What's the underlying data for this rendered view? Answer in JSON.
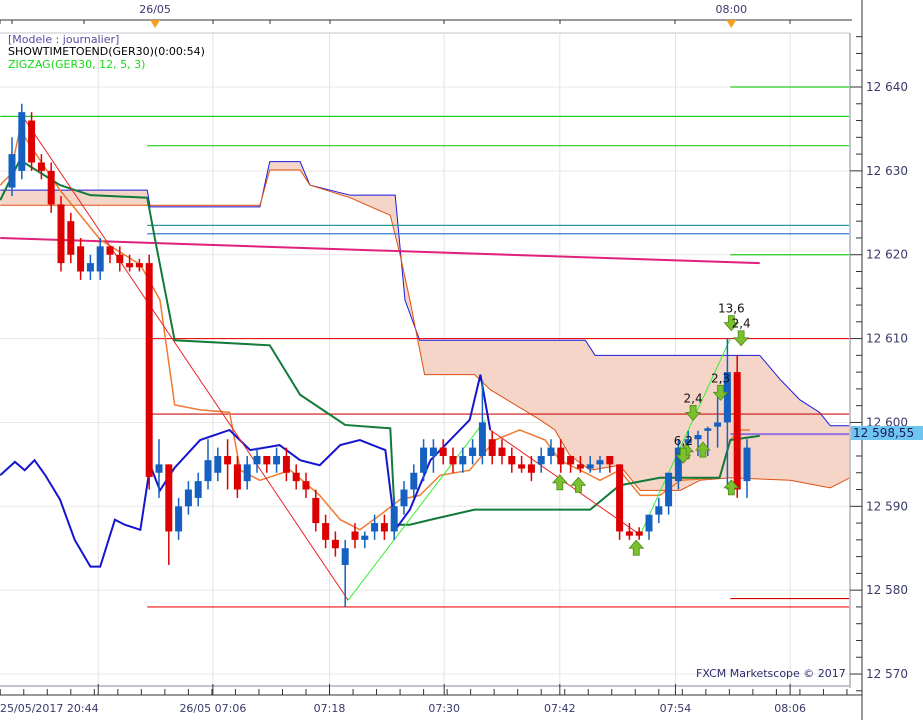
{
  "header": {
    "model": "[Modele : journalier]",
    "timer": "SHOWTIMETOEND(GER30)(0:00:54)",
    "zigzag": "ZIGZAG(GER30, 12, 5, 3)"
  },
  "watermark": "FXCM Marketscope © 2017",
  "last_price": "12 598,55",
  "colors": {
    "up": "#1560c0",
    "down": "#dd0000",
    "cloud": "#f5d5c8",
    "last": "#6ec6f0"
  },
  "chart_data": {
    "type": "candlestick",
    "ylim": [
      12568,
      12646
    ],
    "yticks": [
      {
        "v": 12640,
        "label": "12 640"
      },
      {
        "v": 12630,
        "label": "12 630"
      },
      {
        "v": 12620,
        "label": "12 620"
      },
      {
        "v": 12610,
        "label": "12 610"
      },
      {
        "v": 12600,
        "label": "12 600"
      },
      {
        "v": 12590,
        "label": "12 590"
      },
      {
        "v": 12580,
        "label": "12 580"
      },
      {
        "v": 12570,
        "label": "12 570"
      }
    ],
    "xticks": [
      {
        "i": -1.2,
        "label": "25/05/2017 20:44",
        "grid": false
      },
      {
        "i": 8.8,
        "label": "",
        "grid": true
      },
      {
        "i": 20.5,
        "label": "26/05 07:06",
        "grid": true
      },
      {
        "i": 32.4,
        "label": "07:18",
        "grid": true
      },
      {
        "i": 44.1,
        "label": "07:30",
        "grid": true
      },
      {
        "i": 55.9,
        "label": "07:42",
        "grid": true
      },
      {
        "i": 67.7,
        "label": "07:54",
        "grid": true
      },
      {
        "i": 79.4,
        "label": "08:06",
        "grid": true
      }
    ],
    "top_markers": [
      {
        "i": 14.6,
        "label": "26/05"
      },
      {
        "i": 73.4,
        "label": "08:00"
      }
    ],
    "candles": [
      [
        12628,
        12634,
        12627,
        12632
      ],
      [
        12630,
        12638,
        12629,
        12637
      ],
      [
        12636,
        12637,
        12630,
        12631
      ],
      [
        12631,
        12632,
        12629,
        12630
      ],
      [
        12630,
        12631,
        12625,
        12626
      ],
      [
        12626,
        12627,
        12618,
        12619
      ],
      [
        12624,
        12625,
        12619,
        12620
      ],
      [
        12621,
        12622,
        12617,
        12618
      ],
      [
        12618,
        12620,
        12617,
        12619
      ],
      [
        12618,
        12622,
        12617,
        12621
      ],
      [
        12621,
        12621,
        12619,
        12620
      ],
      [
        12620,
        12621,
        12618,
        12619
      ],
      [
        12619,
        12620,
        12618,
        12618.5
      ],
      [
        12619,
        12619.5,
        12618,
        12618.5
      ],
      [
        12619,
        12620,
        12592,
        12593.5
      ],
      [
        12594,
        12598,
        12591,
        12595
      ],
      [
        12595,
        12595,
        12583,
        12587
      ],
      [
        12587,
        12591,
        12586,
        12590
      ],
      [
        12590,
        12593,
        12589,
        12592
      ],
      [
        12591,
        12594,
        12590,
        12593
      ],
      [
        12593,
        12598,
        12592,
        12595.5
      ],
      [
        12594,
        12597,
        12593,
        12596
      ],
      [
        12596,
        12598,
        12592,
        12595
      ],
      [
        12595,
        12596,
        12591,
        12592
      ],
      [
        12593,
        12596,
        12592,
        12595
      ],
      [
        12595,
        12597,
        12594,
        12596
      ],
      [
        12596,
        12596,
        12594,
        12595
      ],
      [
        12595,
        12597,
        12594,
        12596
      ],
      [
        12596,
        12597,
        12593,
        12594
      ],
      [
        12594,
        12595,
        12592,
        12593
      ],
      [
        12593,
        12594,
        12591,
        12592
      ],
      [
        12591,
        12592,
        12587,
        12588
      ],
      [
        12588,
        12589,
        12585,
        12586
      ],
      [
        12586,
        12587,
        12584,
        12585
      ],
      [
        12583,
        12586,
        12578,
        12585
      ],
      [
        12587,
        12588,
        12585,
        12586
      ],
      [
        12586,
        12587,
        12585,
        12586.5
      ],
      [
        12587,
        12589,
        12586,
        12588
      ],
      [
        12588,
        12589,
        12586,
        12587
      ],
      [
        12587,
        12591,
        12586,
        12590
      ],
      [
        12590,
        12593,
        12589,
        12592
      ],
      [
        12592,
        12595,
        12591,
        12594
      ],
      [
        12594,
        12598,
        12593,
        12597
      ],
      [
        12596,
        12598,
        12594,
        12597
      ],
      [
        12597,
        12598,
        12595,
        12596
      ],
      [
        12596,
        12597,
        12594,
        12595
      ],
      [
        12595,
        12597,
        12594,
        12596
      ],
      [
        12596,
        12598,
        12595,
        12597
      ],
      [
        12596,
        12605,
        12595,
        12600
      ],
      [
        12598,
        12599,
        12595,
        12596
      ],
      [
        12597,
        12598,
        12595,
        12596
      ],
      [
        12596,
        12597,
        12594,
        12595
      ],
      [
        12595,
        12596,
        12594,
        12594.5
      ],
      [
        12595,
        12596,
        12593,
        12594
      ],
      [
        12595,
        12597,
        12594,
        12596
      ],
      [
        12596,
        12598,
        12595,
        12597
      ],
      [
        12597,
        12598,
        12594,
        12595
      ],
      [
        12596,
        12596,
        12594,
        12595
      ],
      [
        12595,
        12596,
        12594,
        12594.5
      ],
      [
        12594.5,
        12596,
        12594,
        12595
      ],
      [
        12595,
        12596,
        12594,
        12595.5
      ],
      [
        12596,
        12596,
        12594,
        12595
      ],
      [
        12595,
        12595,
        12586,
        12587
      ],
      [
        12587,
        12588,
        12586,
        12586.5
      ],
      [
        12587,
        12587.5,
        12586,
        12586.5
      ],
      [
        12587,
        12589,
        12586,
        12589
      ],
      [
        12589,
        12591,
        12588,
        12590
      ],
      [
        12590,
        12594,
        12589,
        12594
      ],
      [
        12593,
        12598,
        12592,
        12597
      ],
      [
        12597.5,
        12599,
        12597,
        12598
      ],
      [
        12598,
        12599,
        12596,
        12598.5
      ],
      [
        12599,
        12599.5,
        12596,
        12599.3
      ],
      [
        12599.5,
        12603,
        12597,
        12600
      ],
      [
        12600,
        12610,
        12592,
        12606
      ],
      [
        12606,
        12608,
        12591,
        12592
      ],
      [
        12593,
        12598,
        12591,
        12597
      ]
    ],
    "cloud_top": [
      [
        -1.2,
        12627.7
      ],
      [
        13.8,
        12627.7
      ],
      [
        14.1,
        12625.7
      ],
      [
        25.3,
        12625.7
      ],
      [
        26.3,
        12631.1
      ],
      [
        29.4,
        12631.1
      ],
      [
        30.4,
        12628.3
      ],
      [
        34.5,
        12627.1
      ],
      [
        39.1,
        12627.1
      ],
      [
        40.1,
        12614.6
      ],
      [
        41.6,
        12609.8
      ],
      [
        58.5,
        12609.8
      ],
      [
        59.5,
        12608
      ],
      [
        76.3,
        12608
      ],
      [
        78.4,
        12605.1
      ],
      [
        80.4,
        12602.7
      ],
      [
        82.4,
        12601.2
      ],
      [
        83.5,
        12599.6
      ],
      [
        85.5,
        12599.6
      ]
    ],
    "cloud_bottom": [
      [
        -1.2,
        12625.9
      ],
      [
        25.3,
        12625.9
      ],
      [
        26.3,
        12630.1
      ],
      [
        29.4,
        12630.1
      ],
      [
        30.4,
        12628.3
      ],
      [
        34.5,
        12626.8
      ],
      [
        38.6,
        12624.7
      ],
      [
        39.6,
        12620
      ],
      [
        40.6,
        12614.6
      ],
      [
        42.1,
        12605.7
      ],
      [
        47.2,
        12605.7
      ],
      [
        48.8,
        12603.9
      ],
      [
        53.9,
        12600.3
      ],
      [
        55.4,
        12599.1
      ],
      [
        56.9,
        12596.1
      ],
      [
        59,
        12594.3
      ],
      [
        62,
        12594.9
      ],
      [
        64.1,
        12591.9
      ],
      [
        68.2,
        12591.9
      ],
      [
        70.2,
        12593.1
      ],
      [
        73.3,
        12593.4
      ],
      [
        79.4,
        12593.1
      ],
      [
        83.5,
        12592.2
      ],
      [
        85.5,
        12593.4
      ]
    ],
    "tenkan_blue": [
      [
        -1.2,
        12593.7
      ],
      [
        0.3,
        12595.3
      ],
      [
        1.3,
        12594.3
      ],
      [
        2.3,
        12595.5
      ],
      [
        3.4,
        12593.7
      ],
      [
        4.9,
        12590.8
      ],
      [
        6.4,
        12586
      ],
      [
        8,
        12582.8
      ],
      [
        9,
        12582.8
      ],
      [
        10.5,
        12588.4
      ],
      [
        11.5,
        12587.8
      ],
      [
        13.1,
        12587.2
      ],
      [
        14.1,
        12594.9
      ],
      [
        15.1,
        12591.9
      ],
      [
        16.6,
        12594.6
      ],
      [
        19.2,
        12597.9
      ],
      [
        22.2,
        12599.1
      ],
      [
        24.3,
        12596.7
      ],
      [
        27.3,
        12597.3
      ],
      [
        29.4,
        12595.5
      ],
      [
        31.4,
        12594.9
      ],
      [
        33.5,
        12597.3
      ],
      [
        35.5,
        12597.9
      ],
      [
        38.1,
        12596.7
      ],
      [
        39.1,
        12587.2
      ],
      [
        40.6,
        12589.6
      ],
      [
        42.7,
        12595.5
      ],
      [
        46.7,
        12600.3
      ],
      [
        47.8,
        12605.7
      ],
      [
        48.8,
        12599.1
      ]
    ],
    "kijun_green": [
      [
        -1.2,
        12626.5
      ],
      [
        0.8,
        12631.3
      ],
      [
        4.9,
        12628.3
      ],
      [
        8,
        12627.1
      ],
      [
        13.8,
        12626.8
      ],
      [
        14.6,
        12621.8
      ],
      [
        16.6,
        12609.8
      ],
      [
        26.3,
        12609.2
      ],
      [
        29.4,
        12603.3
      ],
      [
        34,
        12599.7
      ],
      [
        38.6,
        12599.3
      ],
      [
        39.1,
        12587.8
      ],
      [
        40.6,
        12587.8
      ],
      [
        42.7,
        12588.4
      ],
      [
        47.2,
        12589.6
      ],
      [
        59,
        12589.6
      ],
      [
        62,
        12592.5
      ],
      [
        66.1,
        12593.4
      ],
      [
        72.2,
        12593.4
      ],
      [
        73.3,
        12597.9
      ],
      [
        76.3,
        12598.4
      ]
    ],
    "chikou_orange": [
      [
        -1.2,
        12628.3
      ],
      [
        -0.2,
        12629.5
      ],
      [
        0.8,
        12634.9
      ],
      [
        4.9,
        12627.7
      ],
      [
        9,
        12621.8
      ],
      [
        13.1,
        12618.8
      ],
      [
        15.1,
        12614.6
      ],
      [
        16.6,
        12602.1
      ],
      [
        19.2,
        12601.5
      ],
      [
        22.2,
        12601.2
      ],
      [
        23.3,
        12594.3
      ],
      [
        25.3,
        12593.1
      ],
      [
        28.4,
        12594.3
      ],
      [
        31.4,
        12591.3
      ],
      [
        33.5,
        12588.4
      ],
      [
        35.5,
        12587.2
      ],
      [
        37.6,
        12589
      ],
      [
        39.6,
        12590.8
      ],
      [
        41.6,
        12591.3
      ],
      [
        43.7,
        12593.7
      ],
      [
        46.7,
        12594.3
      ],
      [
        49.3,
        12597.9
      ],
      [
        51.8,
        12599.1
      ],
      [
        54.4,
        12597.9
      ],
      [
        55.9,
        12595.5
      ],
      [
        58,
        12594.3
      ],
      [
        60,
        12593.1
      ],
      [
        62,
        12594.3
      ],
      [
        64.1,
        12591.3
      ],
      [
        66.1,
        12591.3
      ],
      [
        68.2,
        12593.1
      ],
      [
        72.2,
        12593.4
      ],
      [
        73.3,
        12597.9
      ],
      [
        74.3,
        12599.1
      ],
      [
        75.3,
        12599.1
      ]
    ],
    "zigzag_down": [
      [
        [
          0.8,
          12637
        ],
        [
          34.3,
          12578.8
        ]
      ],
      [
        [
          48.8,
          12599.1
        ],
        [
          64.1,
          12586.6
        ]
      ]
    ],
    "zigzag_up": [
      [
        [
          34.3,
          12578.8
        ],
        [
          48.3,
          12600.3
        ]
      ],
      [
        [
          64.1,
          12586.6
        ],
        [
          73.3,
          12610
        ]
      ]
    ],
    "levels": [
      {
        "v": 12640,
        "from": 73.3,
        "to": 85.5,
        "color": "#22cc22"
      },
      {
        "v": 12636.5,
        "from": -1.2,
        "to": 85.5,
        "color": "#22cc22"
      },
      {
        "v": 12633,
        "from": 13.8,
        "to": 85.5,
        "color": "#22cc22"
      },
      {
        "v": 12620,
        "from": 73.3,
        "to": 85.5,
        "color": "#22cc22"
      },
      {
        "v": 12623.5,
        "from": 13.8,
        "to": 85.5,
        "color": "#2a9a9a"
      },
      {
        "v": 12622.5,
        "from": 13.8,
        "to": 85.5,
        "color": "#3a7ad0"
      },
      {
        "v": 12610,
        "from": 13.8,
        "to": 85.5,
        "color": "#ee1111"
      },
      {
        "v": 12601,
        "from": 13.8,
        "to": 85.5,
        "color": "#cc1111"
      },
      {
        "v": 12578,
        "from": 13.8,
        "to": 85.5,
        "color": "#ee1111"
      },
      {
        "v": 12579,
        "from": 73.3,
        "to": 85.5,
        "color": "#cc0000"
      },
      {
        "v": 12598.6,
        "from": 73.3,
        "to": 85.5,
        "color": "#9370db"
      }
    ],
    "magenta_line": [
      [
        -1.2,
        12622
      ],
      [
        76.3,
        12619
      ]
    ],
    "up_arrows": [
      [
        55.9,
        12592.8
      ],
      [
        57.8,
        12592.5
      ],
      [
        63.7,
        12585
      ],
      [
        68.8,
        12596.5
      ],
      [
        70.5,
        12596.7
      ],
      [
        73.4,
        12592.2
      ]
    ],
    "down_arrows": [
      {
        "i": 68.5,
        "v": 12596.1,
        "label": "6,2"
      },
      {
        "i": 69.5,
        "v": 12601.2,
        "label": "2,4"
      },
      {
        "i": 72.3,
        "v": 12603.6,
        "label": "2,3"
      },
      {
        "i": 73.4,
        "v": 12611.9,
        "label": "13,6"
      },
      {
        "i": 74.4,
        "v": 12610.1,
        "label": "2,4"
      }
    ]
  }
}
